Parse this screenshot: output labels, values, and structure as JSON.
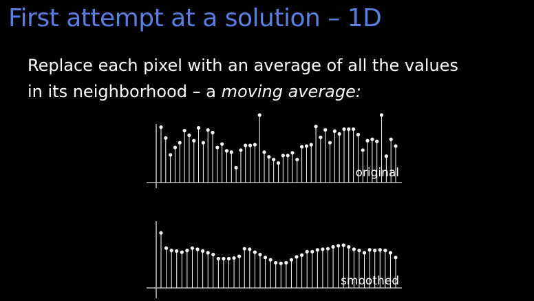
{
  "slide": {
    "title": "First attempt at a solution – 1D",
    "line1": "Replace each pixel with an average of all the values",
    "line2_prefix": "in its neighborhood – a ",
    "line2_emph": "moving average:",
    "colors": {
      "title": "#5b7fe0",
      "text": "#ffffff",
      "background": "#000000",
      "stem": "#ffffff"
    }
  },
  "chart_data": [
    {
      "type": "stem",
      "label": "original",
      "values": [
        82,
        66,
        41,
        52,
        59,
        77,
        70,
        62,
        81,
        59,
        78,
        74,
        52,
        57,
        47,
        45,
        22,
        48,
        55,
        55,
        56,
        100,
        45,
        38,
        34,
        29,
        40,
        40,
        44,
        34,
        53,
        54,
        56,
        83,
        67,
        78,
        59,
        76,
        72,
        79,
        79,
        79,
        71,
        48,
        62,
        64,
        61,
        100,
        39,
        64,
        54
      ]
    },
    {
      "type": "stem",
      "label": "smoothed",
      "values": [
        94,
        68,
        64,
        63,
        61,
        64,
        68,
        66,
        63,
        60,
        57,
        50,
        50,
        50,
        51,
        54,
        67,
        66,
        61,
        57,
        52,
        48,
        43,
        42,
        43,
        48,
        53,
        56,
        62,
        62,
        65,
        66,
        67,
        70,
        72,
        73,
        70,
        66,
        64,
        60,
        65,
        64,
        65,
        64,
        60,
        52
      ]
    }
  ]
}
